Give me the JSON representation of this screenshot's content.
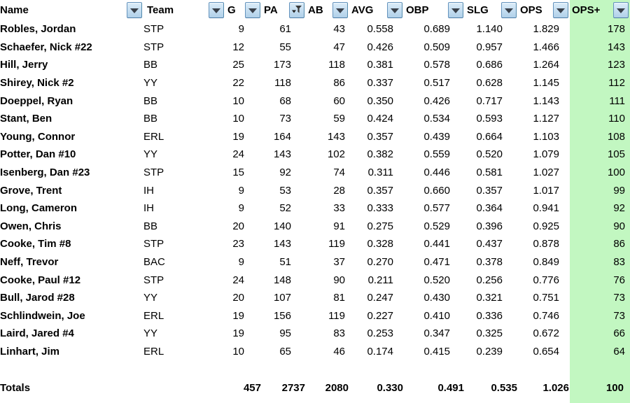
{
  "colors": {
    "highlight_green": "#c2f7c1",
    "button_face_top": "#dcedf9",
    "button_face_bottom": "#b0d0e9",
    "button_border": "#6493bd",
    "text": "#000000"
  },
  "table": {
    "columns": [
      {
        "key": "name",
        "label": "Name",
        "filter": "dropdown"
      },
      {
        "key": "team",
        "label": "Team",
        "filter": "dropdown"
      },
      {
        "key": "g",
        "label": "G",
        "filter": "dropdown"
      },
      {
        "key": "pa",
        "label": "PA",
        "filter": "funnel-sorted"
      },
      {
        "key": "ab",
        "label": "AB",
        "filter": "dropdown"
      },
      {
        "key": "avg",
        "label": "AVG",
        "filter": "dropdown"
      },
      {
        "key": "obp",
        "label": "OBP",
        "filter": "dropdown"
      },
      {
        "key": "slg",
        "label": "SLG",
        "filter": "dropdown"
      },
      {
        "key": "ops",
        "label": "OPS",
        "filter": "dropdown"
      },
      {
        "key": "ops_plus",
        "label": "OPS+",
        "filter": "dropdown",
        "highlight": true
      }
    ],
    "rows": [
      {
        "name": "Robles, Jordan",
        "team": "STP",
        "g": 9,
        "pa": 61,
        "ab": 43,
        "avg": "0.558",
        "obp": "0.689",
        "slg": "1.140",
        "ops": "1.829",
        "ops_plus": 178
      },
      {
        "name": "Schaefer, Nick #22",
        "team": "STP",
        "g": 12,
        "pa": 55,
        "ab": 47,
        "avg": "0.426",
        "obp": "0.509",
        "slg": "0.957",
        "ops": "1.466",
        "ops_plus": 143
      },
      {
        "name": "Hill, Jerry",
        "team": "BB",
        "g": 25,
        "pa": 173,
        "ab": 118,
        "avg": "0.381",
        "obp": "0.578",
        "slg": "0.686",
        "ops": "1.264",
        "ops_plus": 123
      },
      {
        "name": "Shirey, Nick #2",
        "team": "YY",
        "g": 22,
        "pa": 118,
        "ab": 86,
        "avg": "0.337",
        "obp": "0.517",
        "slg": "0.628",
        "ops": "1.145",
        "ops_plus": 112
      },
      {
        "name": "Doeppel, Ryan",
        "team": "BB",
        "g": 10,
        "pa": 68,
        "ab": 60,
        "avg": "0.350",
        "obp": "0.426",
        "slg": "0.717",
        "ops": "1.143",
        "ops_plus": 111
      },
      {
        "name": "Stant, Ben",
        "team": "BB",
        "g": 10,
        "pa": 73,
        "ab": 59,
        "avg": "0.424",
        "obp": "0.534",
        "slg": "0.593",
        "ops": "1.127",
        "ops_plus": 110
      },
      {
        "name": "Young, Connor",
        "team": "ERL",
        "g": 19,
        "pa": 164,
        "ab": 143,
        "avg": "0.357",
        "obp": "0.439",
        "slg": "0.664",
        "ops": "1.103",
        "ops_plus": 108
      },
      {
        "name": "Potter, Dan #10",
        "team": "YY",
        "g": 24,
        "pa": 143,
        "ab": 102,
        "avg": "0.382",
        "obp": "0.559",
        "slg": "0.520",
        "ops": "1.079",
        "ops_plus": 105
      },
      {
        "name": "Isenberg, Dan #23",
        "team": "STP",
        "g": 15,
        "pa": 92,
        "ab": 74,
        "avg": "0.311",
        "obp": "0.446",
        "slg": "0.581",
        "ops": "1.027",
        "ops_plus": 100
      },
      {
        "name": "Grove, Trent",
        "team": "IH",
        "g": 9,
        "pa": 53,
        "ab": 28,
        "avg": "0.357",
        "obp": "0.660",
        "slg": "0.357",
        "ops": "1.017",
        "ops_plus": 99
      },
      {
        "name": "Long, Cameron",
        "team": "IH",
        "g": 9,
        "pa": 52,
        "ab": 33,
        "avg": "0.333",
        "obp": "0.577",
        "slg": "0.364",
        "ops": "0.941",
        "ops_plus": 92
      },
      {
        "name": "Owen, Chris",
        "team": "BB",
        "g": 20,
        "pa": 140,
        "ab": 91,
        "avg": "0.275",
        "obp": "0.529",
        "slg": "0.396",
        "ops": "0.925",
        "ops_plus": 90
      },
      {
        "name": "Cooke, Tim #8",
        "team": "STP",
        "g": 23,
        "pa": 143,
        "ab": 119,
        "avg": "0.328",
        "obp": "0.441",
        "slg": "0.437",
        "ops": "0.878",
        "ops_plus": 86
      },
      {
        "name": "Neff, Trevor",
        "team": "BAC",
        "g": 9,
        "pa": 51,
        "ab": 37,
        "avg": "0.270",
        "obp": "0.471",
        "slg": "0.378",
        "ops": "0.849",
        "ops_plus": 83
      },
      {
        "name": "Cooke, Paul #12",
        "team": "STP",
        "g": 24,
        "pa": 148,
        "ab": 90,
        "avg": "0.211",
        "obp": "0.520",
        "slg": "0.256",
        "ops": "0.776",
        "ops_plus": 76
      },
      {
        "name": "Bull, Jarod #28",
        "team": "YY",
        "g": 20,
        "pa": 107,
        "ab": 81,
        "avg": "0.247",
        "obp": "0.430",
        "slg": "0.321",
        "ops": "0.751",
        "ops_plus": 73
      },
      {
        "name": "Schlindwein, Joe",
        "team": "ERL",
        "g": 19,
        "pa": 156,
        "ab": 119,
        "avg": "0.227",
        "obp": "0.410",
        "slg": "0.336",
        "ops": "0.746",
        "ops_plus": 73
      },
      {
        "name": "Laird, Jared #4",
        "team": "YY",
        "g": 19,
        "pa": 95,
        "ab": 83,
        "avg": "0.253",
        "obp": "0.347",
        "slg": "0.325",
        "ops": "0.672",
        "ops_plus": 66
      },
      {
        "name": "Linhart, Jim",
        "team": "ERL",
        "g": 10,
        "pa": 65,
        "ab": 46,
        "avg": "0.174",
        "obp": "0.415",
        "slg": "0.239",
        "ops": "0.654",
        "ops_plus": 64
      }
    ],
    "totals": {
      "name": "Totals",
      "team": "",
      "g": 457,
      "pa": 2737,
      "ab": 2080,
      "avg": "0.330",
      "obp": "0.491",
      "slg": "0.535",
      "ops": "1.026",
      "ops_plus": 100
    }
  }
}
